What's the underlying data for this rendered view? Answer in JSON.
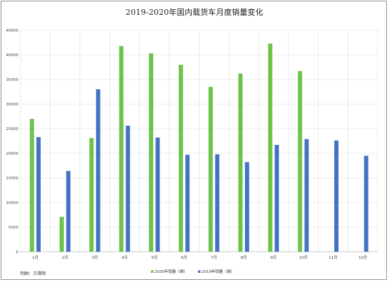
{
  "chart_data": {
    "type": "bar",
    "title": "2019-2020年国内载货车月度销量变化",
    "categories": [
      "1月",
      "2月",
      "3月",
      "4月",
      "5月",
      "6月",
      "7月",
      "8月",
      "9月",
      "10月",
      "11月",
      "12月"
    ],
    "series": [
      {
        "name": "2020年销量（辆）",
        "color": "#6cc24a",
        "values": [
          27000,
          7100,
          23100,
          41800,
          40300,
          38000,
          33500,
          36200,
          42300,
          36700,
          null,
          null
        ]
      },
      {
        "name": "2019年销量（辆）",
        "color": "#4472c4",
        "values": [
          23300,
          16400,
          33000,
          25600,
          23200,
          19700,
          19800,
          18200,
          21700,
          22900,
          22600,
          19500
        ]
      }
    ],
    "yticks": [
      0,
      5000,
      10000,
      15000,
      20000,
      25000,
      30000,
      35000,
      40000,
      45000
    ],
    "ylim": [
      0,
      45000
    ],
    "grid": true,
    "legend": "bottom"
  },
  "credit": "制图：方得网"
}
